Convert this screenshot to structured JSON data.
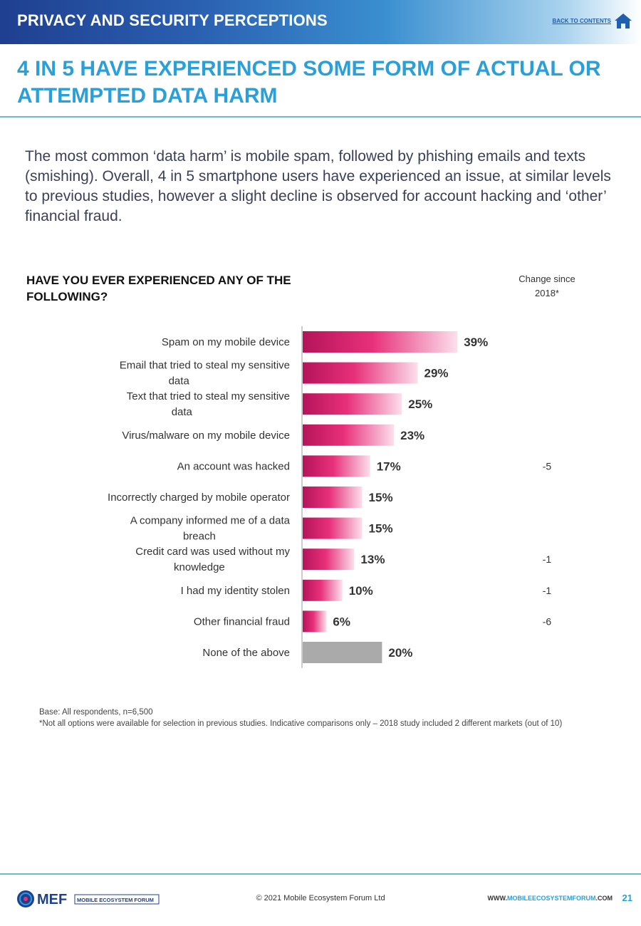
{
  "header": {
    "section_title": "PRIVACY AND SECURITY PERCEPTIONS",
    "back_link": "BACK TO CONTENTS",
    "home_icon": "home-icon"
  },
  "headline": "4 IN 5 HAVE EXPERIENCED SOME FORM OF ACTUAL OR ATTEMPTED DATA HARM",
  "intro": "The most common ‘data harm’ is mobile spam, followed by phishing emails and texts (smishing). Overall, 4 in 5 smartphone users have experienced an issue, at similar levels to previous studies, however a slight decline is observed for account hacking and ‘other’ financial fraud.",
  "colors": {
    "accent_blue": "#2a9fd8",
    "bar_dark": "#b5145a",
    "bar_mid": "#e8307a",
    "bar_light": "#fbe0ec",
    "none_grey": "#aaaaaa"
  },
  "chart_data": {
    "type": "bar",
    "orientation": "horizontal",
    "title": "HAVE YOU EVER EXPERIENCED ANY OF THE FOLLOWING?",
    "change_header": "Change since 2018*",
    "xlim": [
      0,
      50
    ],
    "value_suffix": "%",
    "categories": [
      [
        "Spam on my mobile device"
      ],
      [
        "Email that tried to steal my sensitive",
        "data"
      ],
      [
        "Text that tried to steal my sensitive",
        "data"
      ],
      [
        "Virus/malware on my mobile device"
      ],
      [
        "An account was hacked"
      ],
      [
        "Incorrectly charged by mobile operator"
      ],
      [
        "A company informed me of a data",
        "breach"
      ],
      [
        "Credit card was used without my",
        "knowledge"
      ],
      [
        "I had my identity stolen"
      ],
      [
        "Other financial fraud"
      ],
      [
        "None of the above"
      ]
    ],
    "values": [
      39,
      29,
      25,
      23,
      17,
      15,
      15,
      13,
      10,
      6,
      20
    ],
    "changes": [
      "",
      "",
      "",
      "",
      "-5",
      "",
      "",
      "-1",
      "-1",
      "-6",
      ""
    ],
    "highlight_grey_index": 10
  },
  "notes": {
    "base": "Base: All respondents, n=6,500",
    "footnote": "*Not all options were available for selection in previous studies. Indicative comparisons only – 2018 study included 2 different markets (out of 10)"
  },
  "footer": {
    "logo_text": "MEF",
    "logo_subtitle": "MOBILE ECOSYSTEM FORUM",
    "copyright": "© 2021 Mobile Ecosystem Forum Ltd",
    "website_prefix": "WWW.",
    "website_highlight": "MOBILEECOSYSTEMFORUM",
    "website_suffix": ".COM",
    "page_number": "21"
  }
}
